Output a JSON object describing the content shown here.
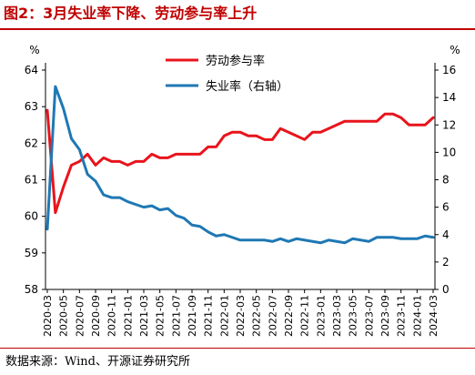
{
  "title": "图2：3月失业率下降、劳动参与率上升",
  "source": "数据来源：Wind、开源证券研究所",
  "chart_data": {
    "type": "line",
    "title": "",
    "left_axis": {
      "unit": "%",
      "ticks": [
        58,
        59,
        60,
        61,
        62,
        63,
        64
      ],
      "ylim": [
        58,
        64
      ]
    },
    "right_axis": {
      "unit": "%",
      "ticks": [
        0,
        2,
        4,
        6,
        8,
        10,
        12,
        14,
        16
      ],
      "ylim": [
        0,
        16
      ]
    },
    "x_tick_labels": [
      "2020-03",
      "2020-05",
      "2020-07",
      "2020-09",
      "2020-11",
      "2021-01",
      "2021-03",
      "2021-05",
      "2021-07",
      "2021-09",
      "2021-11",
      "2022-01",
      "2022-03",
      "2022-05",
      "2022-07",
      "2022-09",
      "2022-11",
      "2023-01",
      "2023-03",
      "2023-05",
      "2023-07",
      "2023-09",
      "2023-11",
      "2024-01",
      "2024-03"
    ],
    "x": [
      "2020-03",
      "2020-04",
      "2020-05",
      "2020-06",
      "2020-07",
      "2020-08",
      "2020-09",
      "2020-10",
      "2020-11",
      "2020-12",
      "2021-01",
      "2021-02",
      "2021-03",
      "2021-04",
      "2021-05",
      "2021-06",
      "2021-07",
      "2021-08",
      "2021-09",
      "2021-10",
      "2021-11",
      "2021-12",
      "2022-01",
      "2022-02",
      "2022-03",
      "2022-04",
      "2022-05",
      "2022-06",
      "2022-07",
      "2022-08",
      "2022-09",
      "2022-10",
      "2022-11",
      "2022-12",
      "2023-01",
      "2023-02",
      "2023-03",
      "2023-04",
      "2023-05",
      "2023-06",
      "2023-07",
      "2023-08",
      "2023-09",
      "2023-10",
      "2023-11",
      "2023-12",
      "2024-01",
      "2024-02",
      "2024-03"
    ],
    "grid": false,
    "legend_position": "top-center",
    "series": [
      {
        "name": "劳动参与率",
        "axis": "left",
        "color": "#e8141c",
        "values": [
          62.9,
          60.1,
          60.8,
          61.4,
          61.5,
          61.7,
          61.4,
          61.6,
          61.5,
          61.5,
          61.4,
          61.5,
          61.5,
          61.7,
          61.6,
          61.6,
          61.7,
          61.7,
          61.7,
          61.7,
          61.9,
          61.9,
          62.2,
          62.3,
          62.3,
          62.2,
          62.2,
          62.1,
          62.1,
          62.4,
          62.3,
          62.2,
          62.1,
          62.3,
          62.3,
          62.4,
          62.5,
          62.6,
          62.6,
          62.6,
          62.6,
          62.6,
          62.8,
          62.8,
          62.7,
          62.5,
          62.5,
          62.5,
          62.7
        ]
      },
      {
        "name": "失业率（右轴）",
        "axis": "right",
        "color": "#1f78b4",
        "values": [
          4.4,
          14.8,
          13.2,
          11.0,
          10.2,
          8.4,
          7.9,
          6.9,
          6.7,
          6.7,
          6.4,
          6.2,
          6.0,
          6.1,
          5.8,
          5.9,
          5.4,
          5.2,
          4.7,
          4.6,
          4.2,
          3.9,
          4.0,
          3.8,
          3.6,
          3.6,
          3.6,
          3.6,
          3.5,
          3.7,
          3.5,
          3.7,
          3.6,
          3.5,
          3.4,
          3.6,
          3.5,
          3.4,
          3.7,
          3.6,
          3.5,
          3.8,
          3.8,
          3.8,
          3.7,
          3.7,
          3.7,
          3.9,
          3.8
        ]
      }
    ]
  }
}
